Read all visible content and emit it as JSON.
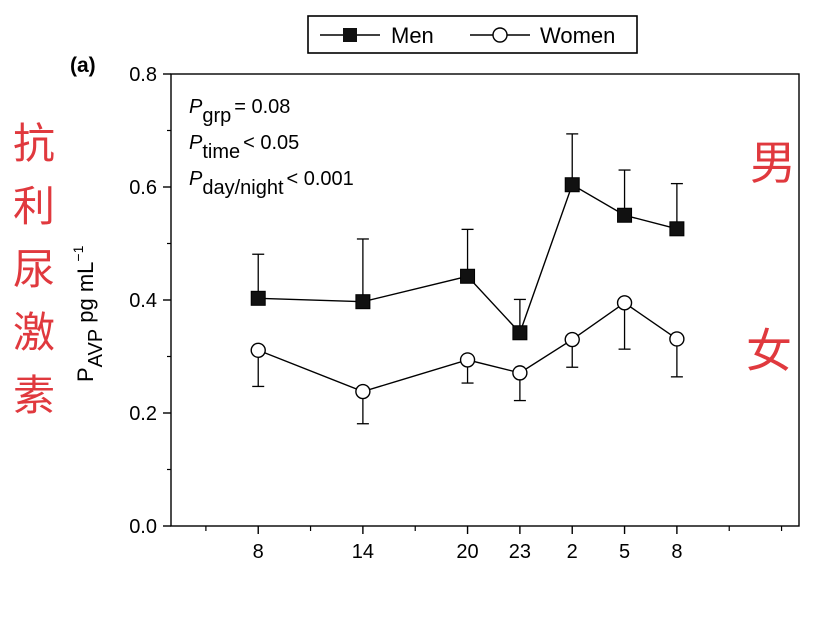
{
  "chart_data": {
    "type": "line",
    "panel_label": "(a)",
    "ylabel_main": "P",
    "ylabel_sub": "AVP",
    "ylabel_unit": "pg mL",
    "ylabel_exp": "−1",
    "x_ticks": [
      "8",
      "14",
      "20",
      "23",
      "2",
      "5",
      "8"
    ],
    "x_hours_elapsed": [
      0,
      6,
      12,
      15,
      18,
      21,
      24
    ],
    "xlim": [
      -5,
      31
    ],
    "ylim": [
      0.0,
      0.8
    ],
    "y_ticks": [
      "0.0",
      "0.2",
      "0.4",
      "0.6",
      "0.8"
    ],
    "y_tick_values": [
      0.0,
      0.2,
      0.4,
      0.6,
      0.8
    ],
    "series": [
      {
        "name": "Men",
        "marker": "filled-square",
        "values": [
          0.403,
          0.397,
          0.442,
          0.342,
          0.604,
          0.55,
          0.526
        ],
        "error_upper": [
          0.481,
          0.508,
          0.525,
          0.401,
          0.694,
          0.63,
          0.606
        ]
      },
      {
        "name": "Women",
        "marker": "open-circle",
        "values": [
          0.311,
          0.238,
          0.294,
          0.271,
          0.33,
          0.395,
          0.331
        ],
        "error_lower": [
          0.247,
          0.181,
          0.253,
          0.222,
          0.281,
          0.313,
          0.264
        ]
      }
    ],
    "stats": [
      {
        "main": "P",
        "sub": "grp",
        "text": "= 0.08"
      },
      {
        "main": "P",
        "sub": "time",
        "text": "< 0.05"
      },
      {
        "main": "P",
        "sub": "day/night",
        "text": "< 0.001"
      }
    ],
    "legend_position": "top-center",
    "grid": false
  },
  "annotations": {
    "side_text": [
      "抗",
      "利",
      "尿",
      "激",
      "素"
    ],
    "men_label": "男",
    "women_label": "女"
  },
  "colors": {
    "axis": "#000000",
    "annotation_red": "#e0393e"
  }
}
